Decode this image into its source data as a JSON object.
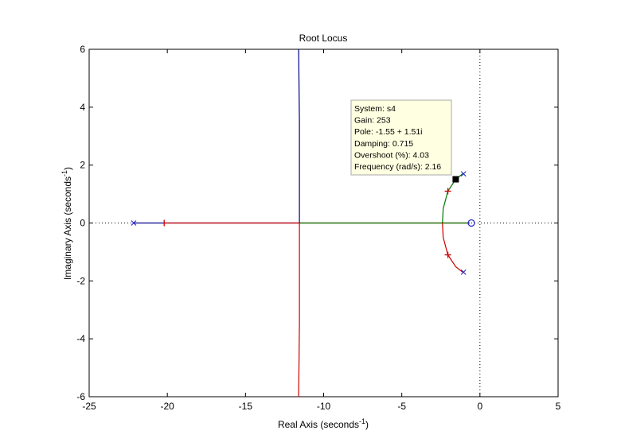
{
  "chart_data": {
    "type": "line",
    "title": "Root Locus",
    "xlabel": {
      "main": "Real Axis (seconds",
      "sup": "-1",
      "tail": ")"
    },
    "ylabel": {
      "main": "Imaginary Axis (seconds",
      "sup": "-1",
      "tail": ")"
    },
    "xlim": [
      -25,
      5
    ],
    "ylim": [
      -6,
      6
    ],
    "xticks": [
      -25,
      -20,
      -15,
      -10,
      -5,
      0,
      5
    ],
    "yticks": [
      -6,
      -4,
      -2,
      0,
      2,
      4,
      6
    ],
    "grid": false,
    "reference_lines": {
      "x": 0,
      "y": 0,
      "style": "dotted"
    },
    "colors": {
      "blue": "#00008b",
      "red": "#cc0000",
      "green": "#007700",
      "axes": "#000000",
      "datatip_bg": "#ffffe1"
    },
    "series": [
      {
        "color": "#00008b",
        "points": [
          [
            -22.15,
            0
          ],
          [
            -11.55,
            0
          ],
          [
            -11.55,
            3.5
          ],
          [
            -11.6,
            6
          ]
        ]
      },
      {
        "color": "#cc0000",
        "points": [
          [
            -20.2,
            0
          ],
          [
            -11.55,
            0
          ],
          [
            -11.55,
            -3.5
          ],
          [
            -11.6,
            -6
          ]
        ]
      },
      {
        "color": "#cc0000",
        "points": [
          [
            -11.55,
            0
          ],
          [
            -0.65,
            0
          ]
        ]
      },
      {
        "color": "#007700",
        "points": [
          [
            -11.55,
            0
          ],
          [
            -0.65,
            0
          ]
        ]
      },
      {
        "color": "#007700",
        "points": [
          [
            -1.1,
            1.7
          ],
          [
            -1.55,
            1.51
          ],
          [
            -2.05,
            1.1
          ],
          [
            -2.35,
            0.5
          ],
          [
            -2.4,
            0
          ]
        ]
      },
      {
        "color": "#cc0000",
        "points": [
          [
            -1.1,
            -1.7
          ],
          [
            -1.55,
            -1.51
          ],
          [
            -2.05,
            -1.1
          ],
          [
            -2.35,
            -0.5
          ],
          [
            -2.4,
            0
          ]
        ]
      }
    ],
    "poles": [
      [
        -22.15,
        0
      ],
      [
        -1.05,
        1.7
      ],
      [
        -1.05,
        -1.7
      ]
    ],
    "zeros": [
      [
        -0.55,
        0
      ]
    ],
    "gain_marks": [
      {
        "point": [
          -20.2,
          0
        ],
        "orient": "vertical"
      },
      {
        "point": [
          -2.05,
          1.1
        ],
        "orient": "plus"
      },
      {
        "point": [
          -2.05,
          -1.1
        ],
        "orient": "plus"
      }
    ],
    "datatip": {
      "point": [
        -1.55,
        1.51
      ],
      "lines": [
        "System: s4",
        "Gain: 253",
        "Pole: -1.55 + 1.51i",
        "Damping: 0.715",
        "Overshoot (%): 4.03",
        "Frequency (rad/s): 2.16"
      ]
    }
  }
}
